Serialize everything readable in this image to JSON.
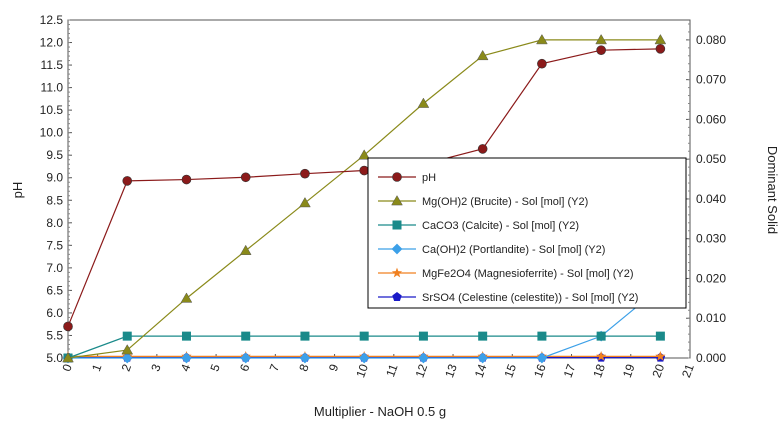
{
  "chart_data": {
    "type": "line",
    "xlabel": "Multiplier - NaOH 0.5 g",
    "ylabel": "pH",
    "y2label": "Dominant Solid",
    "xlim": [
      0,
      21
    ],
    "ylim": [
      5.0,
      12.5
    ],
    "y2lim": [
      0.0,
      0.085
    ],
    "x_ticks": [
      "0",
      "1",
      "2",
      "3",
      "4",
      "5",
      "6",
      "7",
      "8",
      "9",
      "10",
      "11",
      "12",
      "13",
      "14",
      "15",
      "16",
      "17",
      "18",
      "19",
      "20",
      "21"
    ],
    "y_ticks": [
      "5.0",
      "5.5",
      "6.0",
      "6.5",
      "7.0",
      "7.5",
      "8.0",
      "8.5",
      "9.0",
      "9.5",
      "10.0",
      "10.5",
      "11.0",
      "11.5",
      "12.0",
      "12.5"
    ],
    "y2_ticks": [
      "0.000",
      "0.010",
      "0.020",
      "0.030",
      "0.040",
      "0.050",
      "0.060",
      "0.070",
      "0.080"
    ],
    "x": [
      0,
      2,
      4,
      6,
      8,
      10,
      12,
      14,
      16,
      18,
      20
    ],
    "grid": false,
    "legend_position": "center-right",
    "series": [
      {
        "name": "pH",
        "axis": "left",
        "color": "#8b1a1a",
        "marker": "circle",
        "values": [
          5.7,
          8.93,
          8.96,
          9.01,
          9.09,
          9.16,
          9.3,
          9.64,
          11.53,
          11.83,
          11.86
        ]
      },
      {
        "name": "Mg(OH)2 (Brucite) - Sol [mol] (Y2)",
        "axis": "right",
        "color": "#8a8a1a",
        "marker": "triangle",
        "values": [
          0.0,
          0.002,
          0.015,
          0.027,
          0.039,
          0.051,
          0.064,
          0.076,
          0.08,
          0.08,
          0.08
        ]
      },
      {
        "name": "CaCO3 (Calcite) - Sol [mol] (Y2)",
        "axis": "right",
        "color": "#1a8a8a",
        "marker": "square",
        "values": [
          0.0,
          0.0055,
          0.0055,
          0.0055,
          0.0055,
          0.0055,
          0.0055,
          0.0055,
          0.0055,
          0.0055,
          0.0055
        ]
      },
      {
        "name": "Ca(OH)2 (Portlandite) - Sol [mol] (Y2)",
        "axis": "right",
        "color": "#3ca0e8",
        "marker": "diamond",
        "values": [
          0.0,
          0.0,
          0.0,
          0.0,
          0.0,
          0.0,
          0.0,
          0.0,
          0.0,
          0.0055,
          0.0178
        ]
      },
      {
        "name": "MgFe2O4 (Magnesioferrite) - Sol [mol] (Y2)",
        "axis": "right",
        "color": "#f08020",
        "marker": "star",
        "values": [
          0.0004,
          0.0004,
          0.0004,
          0.0004,
          0.0004,
          0.0004,
          0.0004,
          0.0004,
          0.0004,
          0.0004,
          0.0004
        ]
      },
      {
        "name": "SrSO4 (Celestine (celestite)) - Sol [mol] (Y2)",
        "axis": "right",
        "color": "#1a1ac8",
        "marker": "pentagon",
        "values": [
          0.0001,
          0.0001,
          0.0001,
          0.0001,
          0.0001,
          0.0001,
          0.0001,
          0.0001,
          0.0001,
          0.0001,
          0.0001
        ]
      }
    ]
  }
}
